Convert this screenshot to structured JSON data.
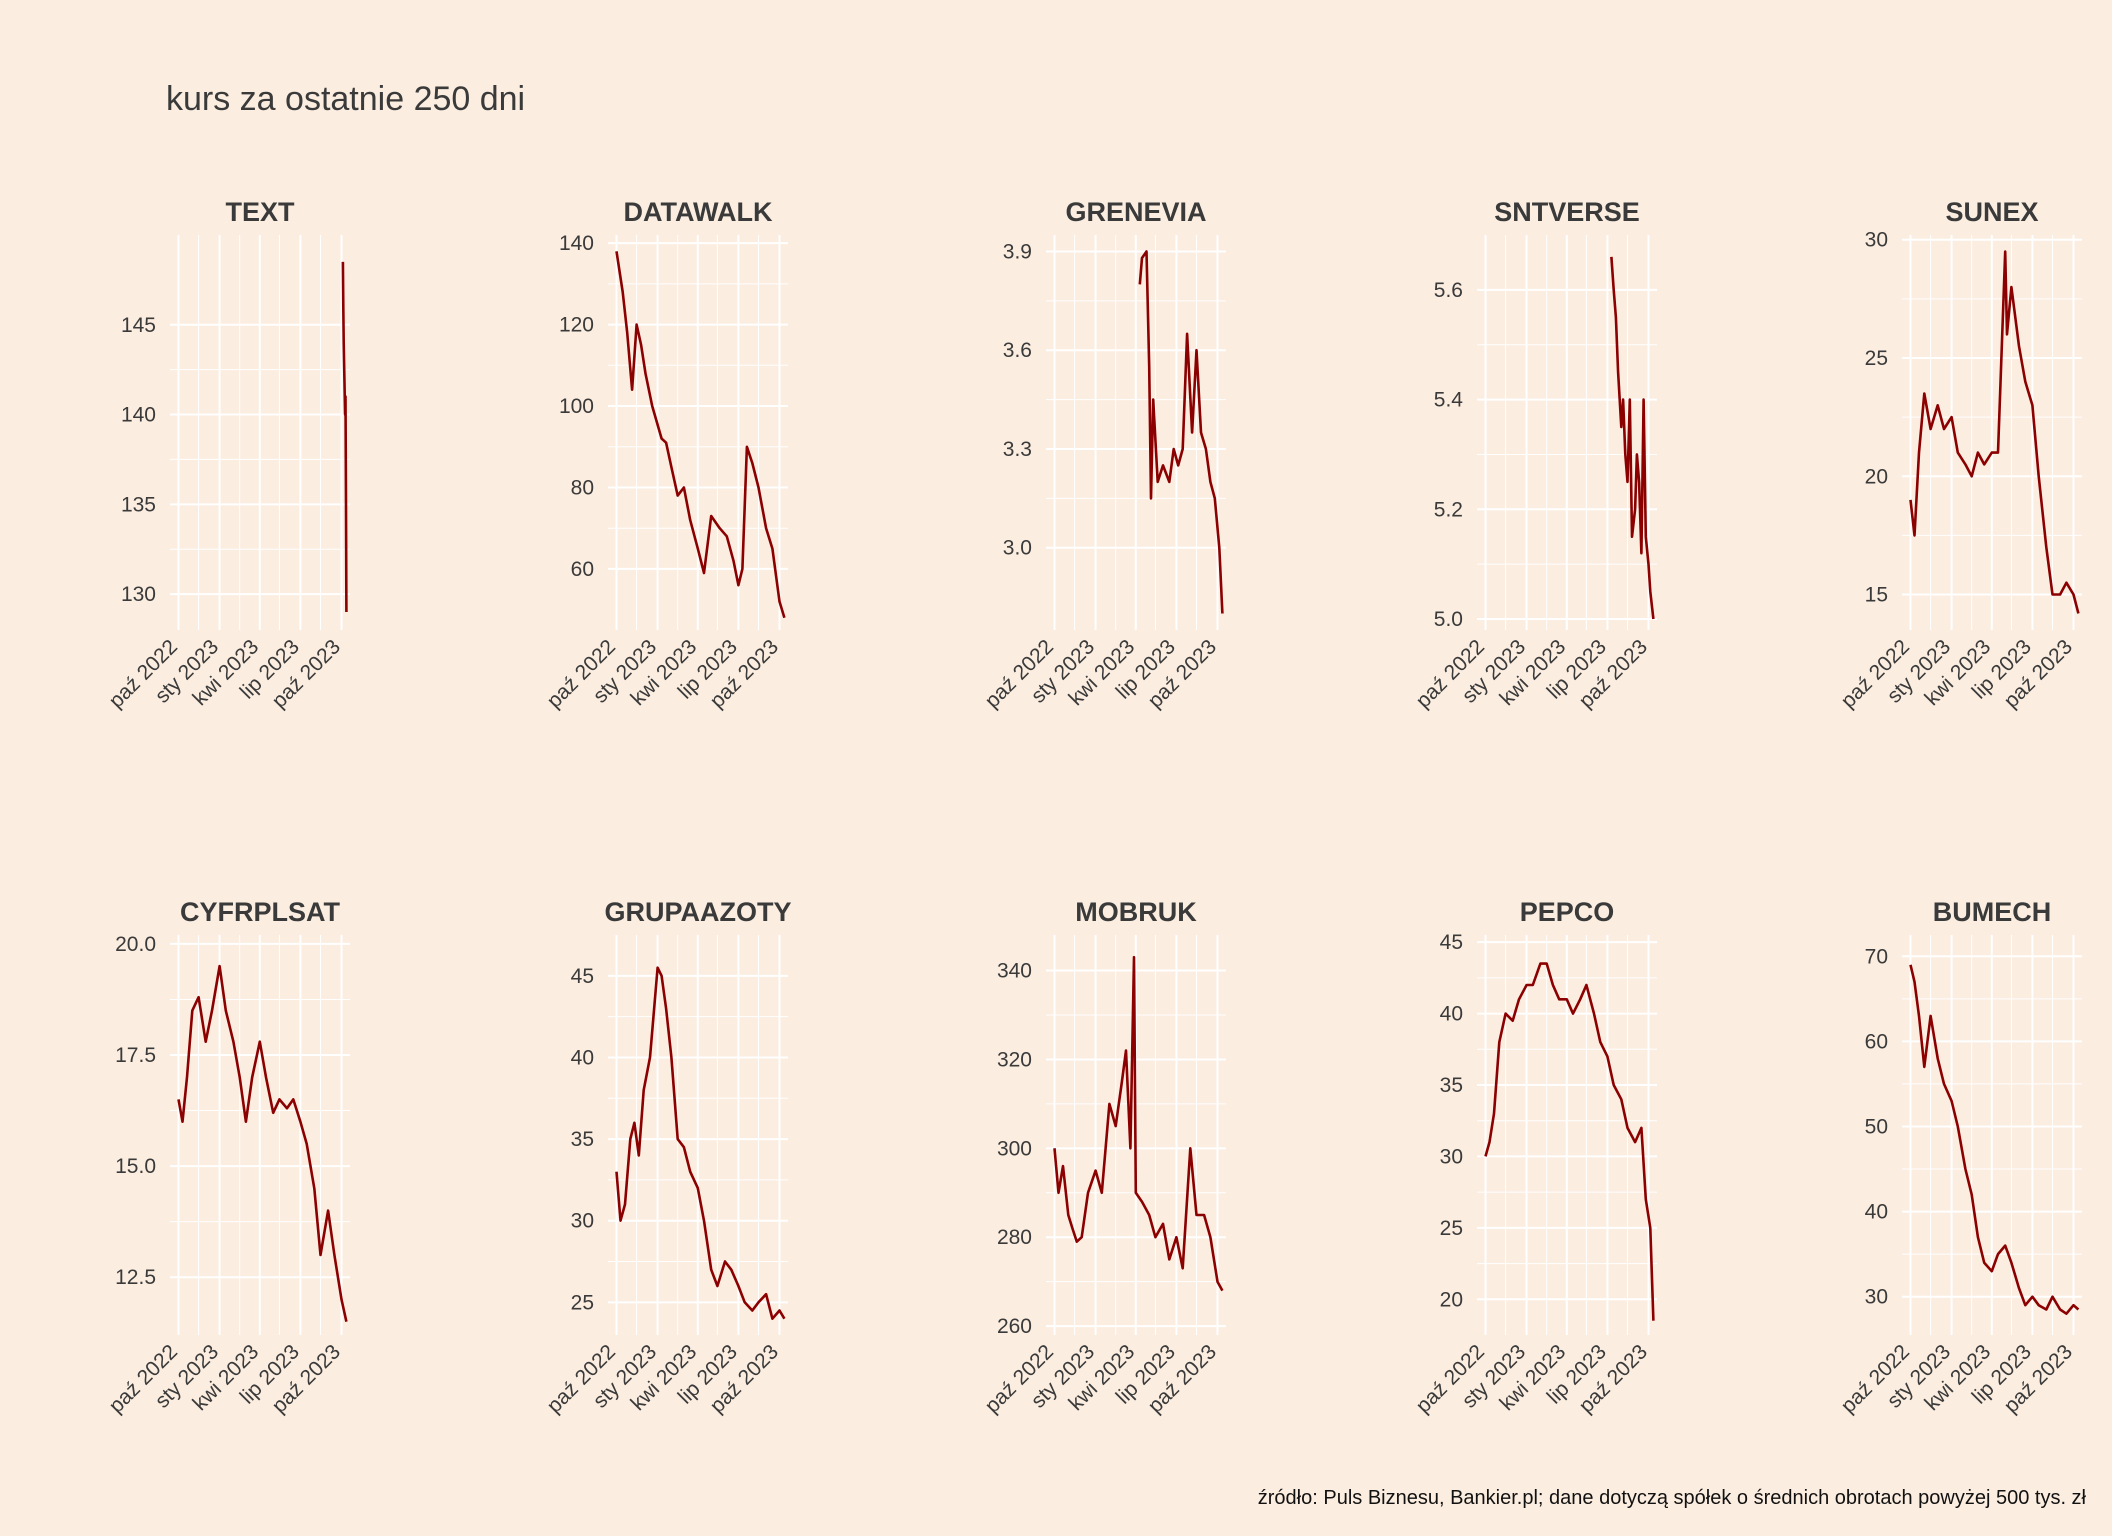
{
  "title": "kurs za ostatnie 250 dni",
  "caption": "źródło: Puls Biznesu, Bankier.pl; dane dotyczą spółek o średnich obrotach powyżej 500 tys. zł",
  "colors": {
    "background": "#fbede0",
    "line": "#8b0000",
    "grid": "#ffffff",
    "text": "#3a3a3a"
  },
  "chart_data": [
    {
      "type": "line",
      "title": "TEXT",
      "xlim": [
        "2022-09-12",
        "2023-10-20"
      ],
      "x_ticks": [
        "paź 2022",
        "sty 2023",
        "kwi 2023",
        "lip 2023",
        "paź 2023"
      ],
      "y_ticks": [
        130,
        135,
        140,
        145
      ],
      "ylim": [
        128,
        150
      ],
      "series": [
        {
          "x": [
            "2023-10-04",
            "2023-10-05",
            "2023-10-06",
            "2023-10-09",
            "2023-10-10",
            "2023-10-11",
            "2023-10-12"
          ],
          "y": [
            148.5,
            146.0,
            144.0,
            140.0,
            141.0,
            135.0,
            129.0
          ]
        }
      ]
    },
    {
      "type": "line",
      "title": "DATAWALK",
      "xlim": [
        "2022-09-12",
        "2023-10-20"
      ],
      "x_ticks": [
        "paź 2022",
        "sty 2023",
        "kwi 2023",
        "lip 2023",
        "paź 2023"
      ],
      "y_ticks": [
        60,
        80,
        100,
        120,
        140
      ],
      "ylim": [
        45,
        142
      ],
      "series": [
        {
          "x": [
            "2022-10-01",
            "2022-10-15",
            "2022-10-25",
            "2022-11-05",
            "2022-11-15",
            "2022-11-25",
            "2022-12-05",
            "2022-12-20",
            "2023-01-10",
            "2023-01-20",
            "2023-02-01",
            "2023-02-15",
            "2023-03-01",
            "2023-03-15",
            "2023-04-01",
            "2023-04-15",
            "2023-05-01",
            "2023-05-20",
            "2023-06-05",
            "2023-06-20",
            "2023-07-01",
            "2023-07-10",
            "2023-07-20",
            "2023-08-01",
            "2023-08-15",
            "2023-09-01",
            "2023-09-15",
            "2023-10-01",
            "2023-10-12"
          ],
          "y": [
            138,
            128,
            118,
            104,
            120,
            115,
            108,
            100,
            92,
            91,
            85,
            78,
            80,
            72,
            65,
            59,
            73,
            70,
            68,
            62,
            56,
            60,
            90,
            86,
            80,
            70,
            65,
            52,
            48
          ]
        }
      ]
    },
    {
      "type": "line",
      "title": "GRENEVIA",
      "xlim": [
        "2022-09-12",
        "2023-10-20"
      ],
      "x_ticks": [
        "paź 2022",
        "sty 2023",
        "kwi 2023",
        "lip 2023",
        "paź 2023"
      ],
      "y_ticks": [
        3.0,
        3.3,
        3.6,
        3.9
      ],
      "ylim": [
        2.75,
        3.95
      ],
      "series": [
        {
          "x": [
            "2023-04-10",
            "2023-04-15",
            "2023-04-25",
            "2023-05-01",
            "2023-05-05",
            "2023-05-10",
            "2023-05-20",
            "2023-06-01",
            "2023-06-15",
            "2023-06-25",
            "2023-07-05",
            "2023-07-15",
            "2023-07-25",
            "2023-08-05",
            "2023-08-15",
            "2023-08-25",
            "2023-09-05",
            "2023-09-15",
            "2023-09-25",
            "2023-10-05",
            "2023-10-12"
          ],
          "y": [
            3.8,
            3.88,
            3.9,
            3.55,
            3.15,
            3.45,
            3.2,
            3.25,
            3.2,
            3.3,
            3.25,
            3.3,
            3.65,
            3.35,
            3.6,
            3.35,
            3.3,
            3.2,
            3.15,
            3.0,
            2.8
          ]
        }
      ]
    },
    {
      "type": "line",
      "title": "SNTVERSE",
      "xlim": [
        "2022-09-12",
        "2023-10-20"
      ],
      "x_ticks": [
        "paź 2022",
        "sty 2023",
        "kwi 2023",
        "lip 2023",
        "paź 2023"
      ],
      "y_ticks": [
        5.0,
        5.2,
        5.4,
        5.6
      ],
      "ylim": [
        4.98,
        5.7
      ],
      "series": [
        {
          "x": [
            "2023-07-10",
            "2023-07-15",
            "2023-07-20",
            "2023-07-25",
            "2023-08-01",
            "2023-08-05",
            "2023-08-10",
            "2023-08-15",
            "2023-08-20",
            "2023-08-25",
            "2023-09-01",
            "2023-09-05",
            "2023-09-10",
            "2023-09-15",
            "2023-09-20",
            "2023-09-25",
            "2023-10-01",
            "2023-10-05",
            "2023-10-12"
          ],
          "y": [
            5.66,
            5.6,
            5.55,
            5.45,
            5.35,
            5.4,
            5.3,
            5.25,
            5.4,
            5.15,
            5.2,
            5.3,
            5.25,
            5.12,
            5.4,
            5.15,
            5.1,
            5.05,
            5.0
          ]
        }
      ]
    },
    {
      "type": "line",
      "title": "SUNEX",
      "xlim": [
        "2022-09-12",
        "2023-10-20"
      ],
      "x_ticks": [
        "paź 2022",
        "sty 2023",
        "kwi 2023",
        "lip 2023",
        "paź 2023"
      ],
      "y_ticks": [
        15,
        20,
        25,
        30
      ],
      "ylim": [
        13.5,
        30.2
      ],
      "series": [
        {
          "x": [
            "2022-10-01",
            "2022-10-10",
            "2022-10-20",
            "2022-11-01",
            "2022-11-15",
            "2022-12-01",
            "2022-12-15",
            "2023-01-01",
            "2023-01-15",
            "2023-02-01",
            "2023-02-15",
            "2023-03-01",
            "2023-03-15",
            "2023-04-01",
            "2023-04-15",
            "2023-05-01",
            "2023-05-05",
            "2023-05-15",
            "2023-06-01",
            "2023-06-15",
            "2023-07-01",
            "2023-07-15",
            "2023-08-01",
            "2023-08-15",
            "2023-09-01",
            "2023-09-15",
            "2023-10-01",
            "2023-10-12"
          ],
          "y": [
            19,
            17.5,
            21,
            23.5,
            22,
            23,
            22,
            22.5,
            21,
            20.5,
            20,
            21,
            20.5,
            21,
            21,
            29.5,
            26,
            28,
            25.5,
            24,
            23,
            20,
            17,
            15,
            15,
            15.5,
            15,
            14.2
          ]
        }
      ]
    },
    {
      "type": "line",
      "title": "CYFRPLSAT",
      "xlim": [
        "2022-09-12",
        "2023-10-20"
      ],
      "x_ticks": [
        "paź 2022",
        "sty 2023",
        "kwi 2023",
        "lip 2023",
        "paź 2023"
      ],
      "y_ticks": [
        12.5,
        15.0,
        17.5,
        20.0
      ],
      "ylim": [
        11.2,
        20.2
      ],
      "series": [
        {
          "x": [
            "2022-10-01",
            "2022-10-10",
            "2022-10-20",
            "2022-11-01",
            "2022-11-15",
            "2022-12-01",
            "2022-12-15",
            "2023-01-01",
            "2023-01-15",
            "2023-02-01",
            "2023-02-15",
            "2023-03-01",
            "2023-03-15",
            "2023-04-01",
            "2023-04-15",
            "2023-05-01",
            "2023-05-15",
            "2023-06-01",
            "2023-06-15",
            "2023-07-01",
            "2023-07-15",
            "2023-08-01",
            "2023-08-15",
            "2023-09-01",
            "2023-09-15",
            "2023-10-01",
            "2023-10-12"
          ],
          "y": [
            16.5,
            16.0,
            17.0,
            18.5,
            18.8,
            17.8,
            18.5,
            19.5,
            18.5,
            17.8,
            17.0,
            16.0,
            17.0,
            17.8,
            17.0,
            16.2,
            16.5,
            16.3,
            16.5,
            16.0,
            15.5,
            14.5,
            13.0,
            14.0,
            13.0,
            12.0,
            11.5
          ]
        }
      ]
    },
    {
      "type": "line",
      "title": "GRUPAAZOTY",
      "xlim": [
        "2022-09-12",
        "2023-10-20"
      ],
      "x_ticks": [
        "paź 2022",
        "sty 2023",
        "kwi 2023",
        "lip 2023",
        "paź 2023"
      ],
      "y_ticks": [
        25,
        30,
        35,
        40,
        45
      ],
      "ylim": [
        23,
        47.5
      ],
      "series": [
        {
          "x": [
            "2022-10-01",
            "2022-10-10",
            "2022-10-20",
            "2022-11-01",
            "2022-11-10",
            "2022-11-20",
            "2022-12-01",
            "2022-12-15",
            "2023-01-01",
            "2023-01-10",
            "2023-01-20",
            "2023-02-01",
            "2023-02-15",
            "2023-03-01",
            "2023-03-15",
            "2023-04-01",
            "2023-04-15",
            "2023-05-01",
            "2023-05-15",
            "2023-06-01",
            "2023-06-15",
            "2023-07-01",
            "2023-07-15",
            "2023-08-01",
            "2023-08-15",
            "2023-09-01",
            "2023-09-15",
            "2023-10-01",
            "2023-10-12"
          ],
          "y": [
            33,
            30,
            31,
            35,
            36,
            34,
            38,
            40,
            45.5,
            45,
            43,
            40,
            35,
            34.5,
            33,
            32,
            30,
            27,
            26,
            27.5,
            27,
            26,
            25,
            24.5,
            25,
            25.5,
            24,
            24.5,
            24
          ]
        }
      ]
    },
    {
      "type": "line",
      "title": "MOBRUK",
      "xlim": [
        "2022-09-12",
        "2023-10-20"
      ],
      "x_ticks": [
        "paź 2022",
        "sty 2023",
        "kwi 2023",
        "lip 2023",
        "paź 2023"
      ],
      "y_ticks": [
        260,
        280,
        300,
        320,
        340
      ],
      "ylim": [
        258,
        348
      ],
      "series": [
        {
          "x": [
            "2022-10-01",
            "2022-10-10",
            "2022-10-20",
            "2022-11-01",
            "2022-11-10",
            "2022-11-20",
            "2022-12-01",
            "2022-12-15",
            "2023-01-01",
            "2023-01-15",
            "2023-02-01",
            "2023-02-15",
            "2023-03-01",
            "2023-03-10",
            "2023-03-20",
            "2023-03-28",
            "2023-04-01",
            "2023-04-15",
            "2023-05-01",
            "2023-05-15",
            "2023-06-01",
            "2023-06-15",
            "2023-07-01",
            "2023-07-15",
            "2023-08-01",
            "2023-08-15",
            "2023-09-01",
            "2023-09-15",
            "2023-10-01",
            "2023-10-12"
          ],
          "y": [
            300,
            290,
            296,
            285,
            282,
            279,
            280,
            290,
            295,
            290,
            310,
            305,
            315,
            322,
            300,
            343,
            290,
            288,
            285,
            280,
            283,
            275,
            280,
            273,
            300,
            285,
            285,
            280,
            270,
            268
          ]
        }
      ]
    },
    {
      "type": "line",
      "title": "PEPCO",
      "xlim": [
        "2022-09-12",
        "2023-10-20"
      ],
      "x_ticks": [
        "paź 2022",
        "sty 2023",
        "kwi 2023",
        "lip 2023",
        "paź 2023"
      ],
      "y_ticks": [
        20,
        25,
        30,
        35,
        40,
        45
      ],
      "ylim": [
        17.5,
        45.5
      ],
      "series": [
        {
          "x": [
            "2022-10-01",
            "2022-10-10",
            "2022-10-20",
            "2022-11-01",
            "2022-11-15",
            "2022-12-01",
            "2022-12-15",
            "2023-01-01",
            "2023-01-15",
            "2023-02-01",
            "2023-02-15",
            "2023-03-01",
            "2023-03-15",
            "2023-04-01",
            "2023-04-15",
            "2023-05-01",
            "2023-05-15",
            "2023-06-01",
            "2023-06-15",
            "2023-07-01",
            "2023-07-15",
            "2023-08-01",
            "2023-08-15",
            "2023-09-01",
            "2023-09-15",
            "2023-09-25",
            "2023-10-05",
            "2023-10-12"
          ],
          "y": [
            30,
            31,
            33,
            38,
            40,
            39.5,
            41,
            42,
            42,
            43.5,
            43.5,
            42,
            41,
            41,
            40,
            41,
            42,
            40,
            38,
            37,
            35,
            34,
            32,
            31,
            32,
            27,
            25,
            18.5
          ]
        }
      ]
    },
    {
      "type": "line",
      "title": "BUMECH",
      "xlim": [
        "2022-09-12",
        "2023-10-20"
      ],
      "x_ticks": [
        "paź 2022",
        "sty 2023",
        "kwi 2023",
        "lip 2023",
        "paź 2023"
      ],
      "y_ticks": [
        30,
        40,
        50,
        60,
        70
      ],
      "ylim": [
        25.5,
        72.5
      ],
      "series": [
        {
          "x": [
            "2022-10-01",
            "2022-10-10",
            "2022-10-20",
            "2022-11-01",
            "2022-11-15",
            "2022-12-01",
            "2022-12-15",
            "2023-01-01",
            "2023-01-15",
            "2023-02-01",
            "2023-02-15",
            "2023-03-01",
            "2023-03-15",
            "2023-04-01",
            "2023-04-15",
            "2023-05-01",
            "2023-05-15",
            "2023-06-01",
            "2023-06-15",
            "2023-07-01",
            "2023-07-15",
            "2023-08-01",
            "2023-08-15",
            "2023-09-01",
            "2023-09-15",
            "2023-10-01",
            "2023-10-12"
          ],
          "y": [
            69,
            67,
            63,
            57,
            63,
            58,
            55,
            53,
            50,
            45,
            42,
            37,
            34,
            33,
            35,
            36,
            34,
            31,
            29,
            30,
            29,
            28.5,
            30,
            28.5,
            28,
            29,
            28.5
          ]
        }
      ]
    }
  ]
}
